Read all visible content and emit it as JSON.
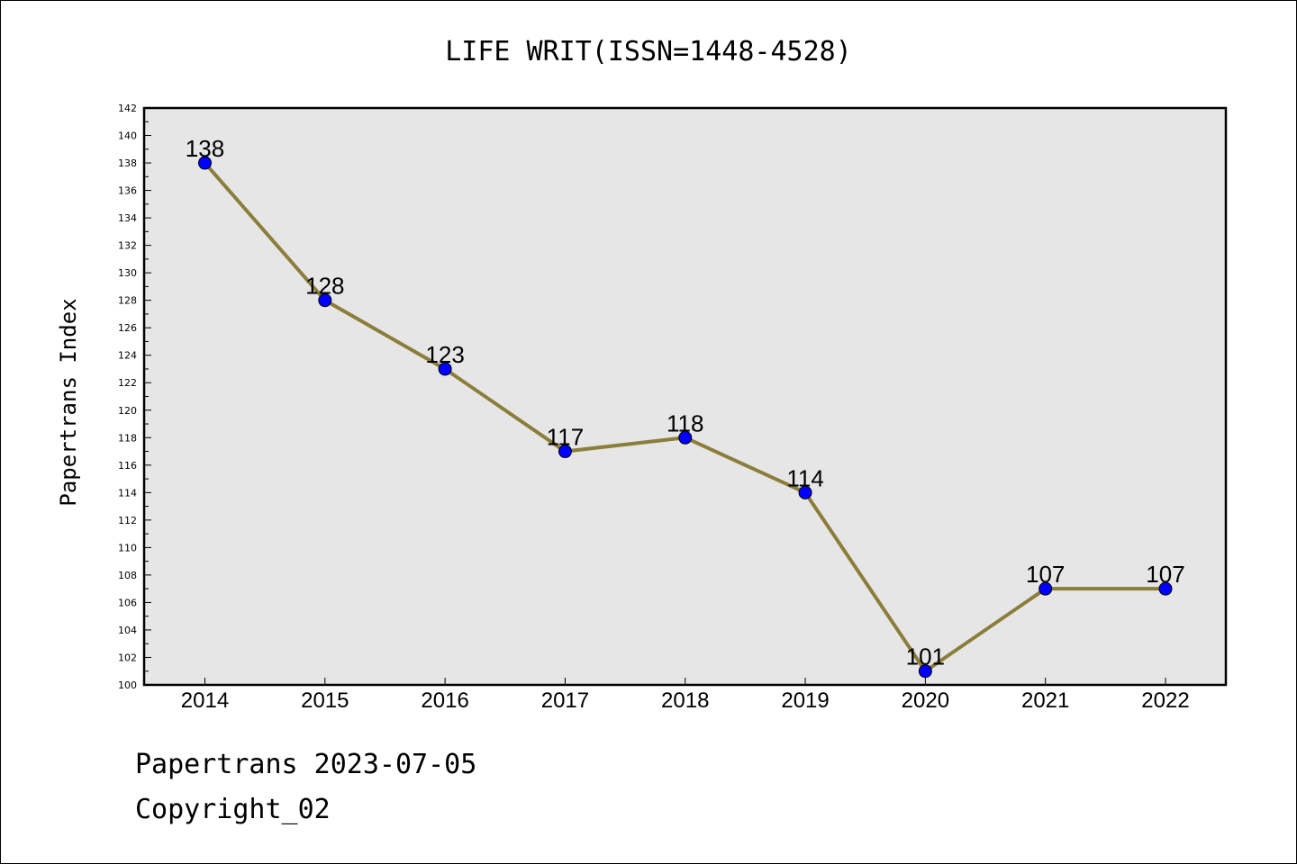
{
  "chart_data": {
    "type": "line",
    "title": "LIFE WRIT(ISSN=1448-4528)",
    "xlabel": "",
    "ylabel": "Papertrans Index",
    "categories": [
      "2014",
      "2015",
      "2016",
      "2017",
      "2018",
      "2019",
      "2020",
      "2021",
      "2022"
    ],
    "series": [
      {
        "values": [
          138,
          128,
          123,
          117,
          118,
          114,
          101,
          107,
          107
        ]
      }
    ],
    "data_labels": [
      "138",
      "128",
      "123",
      "117",
      "118",
      "114",
      "101",
      "107",
      "107"
    ],
    "ylim": [
      100,
      142
    ],
    "yticks": [
      "100",
      "102",
      "104",
      "106",
      "108",
      "110",
      "112",
      "114",
      "116",
      "118",
      "120",
      "122",
      "124",
      "126",
      "128",
      "130",
      "132",
      "134",
      "136",
      "138",
      "140",
      "142"
    ],
    "grid": false,
    "legend": "none",
    "colors": {
      "plot_background": "#e6e6e6",
      "line": "#8b7d3a",
      "marker_fill": "#0000ff",
      "marker_edge": "#000000"
    }
  },
  "footer": {
    "line1": "Papertrans 2023-07-05",
    "line2": "Copyright_02"
  }
}
